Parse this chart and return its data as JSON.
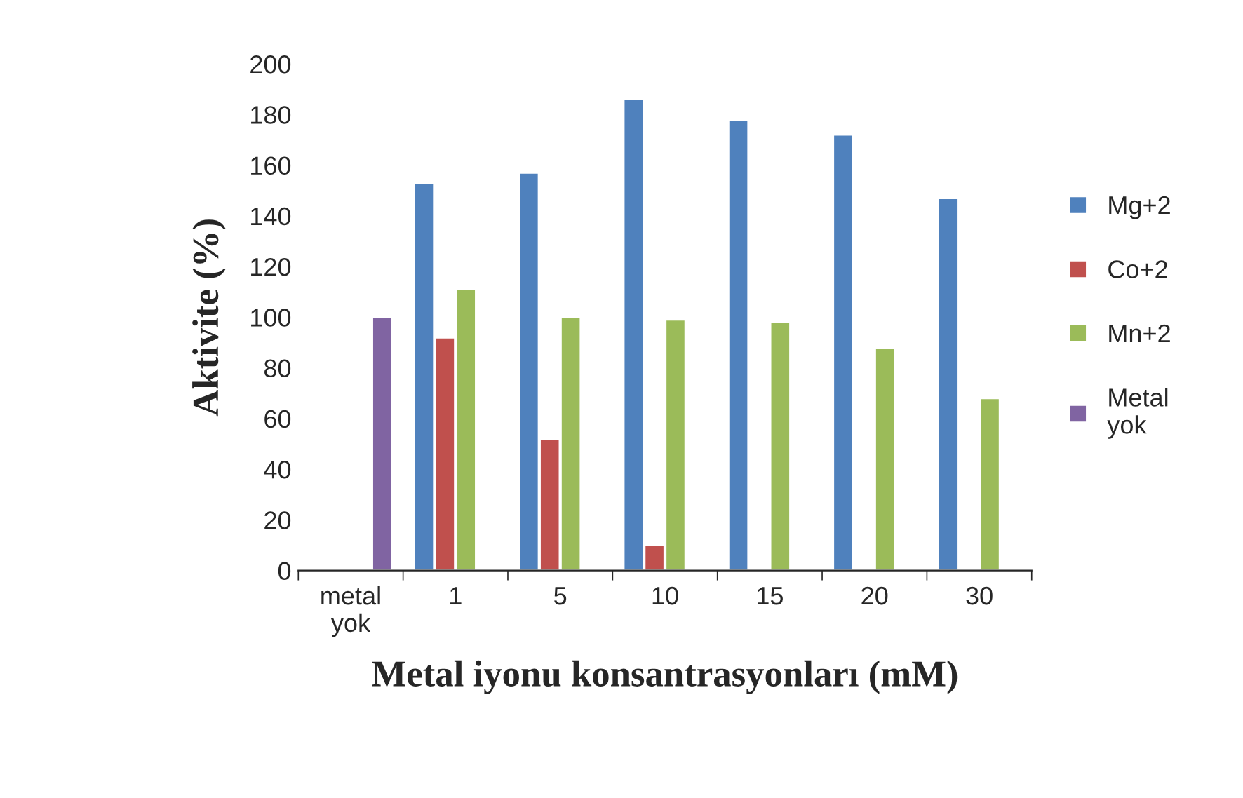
{
  "chart_data": {
    "type": "bar",
    "xlabel": "Metal iyonu konsantrasyonları (mM)",
    "ylabel": "Aktivite (%)",
    "categories": [
      "metal yok",
      "1",
      "5",
      "10",
      "15",
      "20",
      "30"
    ],
    "series": [
      {
        "name": "Mg+2",
        "color": "#4f81bd",
        "values": [
          null,
          153,
          157,
          186,
          178,
          172,
          147
        ]
      },
      {
        "name": "Co+2",
        "color": "#c0504d",
        "values": [
          null,
          92,
          52,
          10,
          null,
          null,
          null
        ]
      },
      {
        "name": "Mn+2",
        "color": "#9bbb59",
        "values": [
          null,
          111,
          100,
          99,
          98,
          88,
          68
        ]
      },
      {
        "name": "Metal yok",
        "color": "#8064a2",
        "values": [
          100,
          null,
          null,
          null,
          null,
          null,
          null
        ]
      }
    ],
    "ylim": [
      0,
      200
    ],
    "yticks": [
      0,
      20,
      40,
      60,
      80,
      100,
      120,
      140,
      160,
      180,
      200
    ],
    "grid": false,
    "legend": "right"
  }
}
